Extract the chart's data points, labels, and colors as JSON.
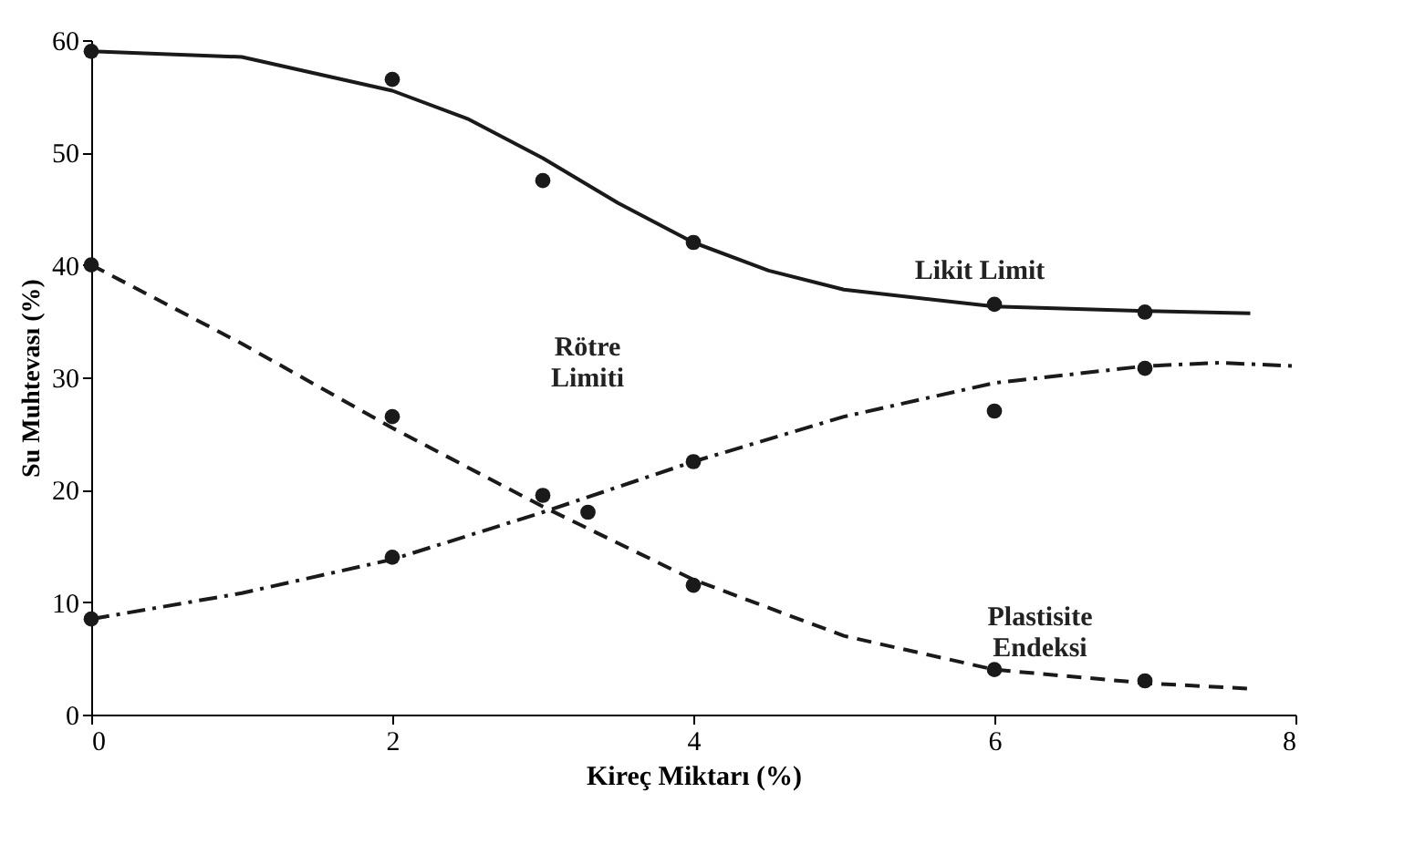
{
  "chart_data": {
    "type": "line",
    "xlabel": "Kireç Miktarı (%)",
    "ylabel": "Su Muhtevası (%)",
    "xlim": [
      0,
      8
    ],
    "xticks": [
      0,
      2,
      4,
      6,
      8
    ],
    "ylim": [
      0,
      60
    ],
    "yticks": [
      0,
      10,
      20,
      30,
      40,
      50,
      60
    ],
    "grid": false,
    "series": [
      {
        "line_style": "solid",
        "marker": "none",
        "color": "#1a1a1a",
        "x": [
          0,
          1,
          2,
          2.5,
          3,
          3.5,
          4,
          4.5,
          5,
          6,
          7,
          7.7
        ],
        "values": [
          59,
          58.5,
          55.5,
          53,
          49.5,
          45.5,
          42,
          39.5,
          37.8,
          36.3,
          35.9,
          35.7
        ]
      },
      {
        "type": "scatter",
        "marker": "circle",
        "color": "#1a1a1a",
        "x": [
          0,
          2,
          3,
          4,
          6,
          7
        ],
        "values": [
          59,
          56.5,
          47.5,
          42,
          36.5,
          35.8
        ]
      },
      {
        "line_style": "dashed",
        "marker": "none",
        "color": "#1a1a1a",
        "x": [
          0,
          1,
          2,
          3,
          4,
          5,
          6,
          7,
          7.7
        ],
        "values": [
          40,
          33,
          25.5,
          18.5,
          12,
          7,
          4,
          2.8,
          2.3
        ]
      },
      {
        "type": "scatter",
        "marker": "circle",
        "color": "#1a1a1a",
        "x": [
          0,
          2,
          3.3,
          4,
          6,
          7
        ],
        "values": [
          40,
          26.5,
          18,
          11.5,
          4,
          3
        ]
      },
      {
        "line_style": "dashdot",
        "marker": "none",
        "color": "#1a1a1a",
        "x": [
          0,
          1,
          2,
          3,
          4,
          5,
          6,
          7,
          7.5,
          8
        ],
        "values": [
          8.5,
          10.8,
          13.8,
          18,
          22.5,
          26.5,
          29.5,
          31,
          31.3,
          31
        ]
      },
      {
        "type": "scatter",
        "marker": "circle",
        "color": "#1a1a1a",
        "x": [
          0,
          2,
          3,
          4,
          6,
          7
        ],
        "values": [
          8.5,
          14,
          19.5,
          22.5,
          27,
          30.8
        ]
      }
    ],
    "annotations": [
      "Likit Limit",
      "Rötre\nLimiti",
      "Plastisite\nEndeksi"
    ]
  }
}
